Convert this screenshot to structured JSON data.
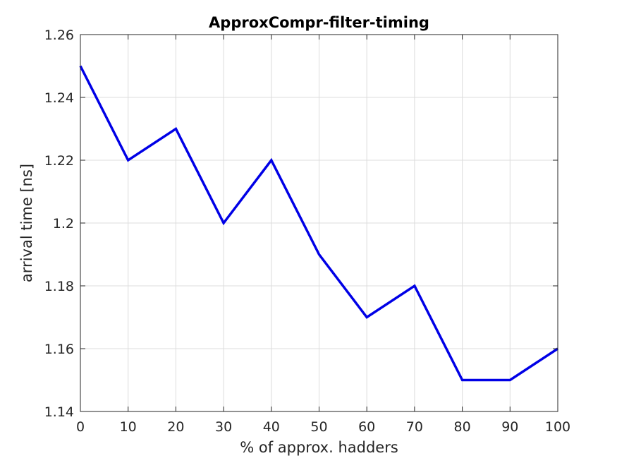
{
  "chart_data": {
    "type": "line",
    "title": "ApproxCompr-filter-timing",
    "xlabel": "% of approx. hadders",
    "ylabel": "arrival time [ns]",
    "xlim": [
      0,
      100
    ],
    "ylim": [
      1.14,
      1.26
    ],
    "xticks": [
      0,
      10,
      20,
      30,
      40,
      50,
      60,
      70,
      80,
      90,
      100
    ],
    "yticks": [
      1.14,
      1.16,
      1.18,
      1.2,
      1.22,
      1.24,
      1.26
    ],
    "xtick_labels": [
      "0",
      "10",
      "20",
      "30",
      "40",
      "50",
      "60",
      "70",
      "80",
      "90",
      "100"
    ],
    "ytick_labels": [
      "1.14",
      "1.16",
      "1.18",
      "1.2",
      "1.22",
      "1.24",
      "1.26"
    ],
    "grid": true,
    "series": [
      {
        "color": "#0000e6",
        "x": [
          0,
          10,
          20,
          30,
          40,
          50,
          60,
          70,
          80,
          90,
          100
        ],
        "y": [
          1.25,
          1.22,
          1.23,
          1.2,
          1.22,
          1.19,
          1.17,
          1.18,
          1.15,
          1.15,
          1.16
        ]
      }
    ]
  }
}
